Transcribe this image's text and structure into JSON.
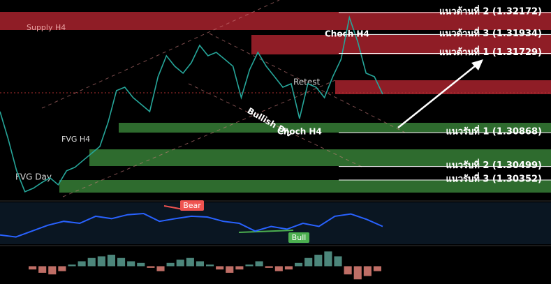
{
  "chart_data": [
    {
      "type": "line",
      "color": "#26a69a",
      "values": [
        1.31096,
        1.30793,
        1.30452,
        1.30224,
        1.30262,
        1.30323,
        1.30376,
        1.303,
        1.30452,
        1.3049,
        1.30566,
        1.30641,
        1.30717,
        1.30982,
        1.31324,
        1.31361,
        1.31248,
        1.31172,
        1.31096,
        1.31475,
        1.31703,
        1.31589,
        1.31513,
        1.31627,
        1.31816,
        1.31703,
        1.3174,
        1.31665,
        1.31589,
        1.31248,
        1.31551,
        1.3174,
        1.31589,
        1.31475,
        1.31361,
        1.31399,
        1.3102,
        1.31399,
        1.31361,
        1.31248,
        1.31475,
        1.31665,
        1.32119,
        1.31854,
        1.31513,
        1.31475,
        1.31286
      ],
      "ylim": [
        1.30147,
        1.32309
      ],
      "levels": [
        {
          "label": "แนวต้านที่ 2 (1.32172)",
          "value": 1.32172
        },
        {
          "label": "แนวต้านที่ 3 (1.31934)",
          "value": 1.31934
        },
        {
          "label": "แนวต้านที่ 1 (1.31729)",
          "value": 1.31729
        },
        {
          "label": "แนวรับที่ 1 (1.30868)",
          "value": 1.30868
        },
        {
          "label": "แนวรับที่ 2 (1.30499)",
          "value": 1.30499
        },
        {
          "label": "แนวรับที่ 3 (1.30352)",
          "value": 1.30352
        }
      ],
      "annotations": [
        "Supply H4",
        "Choch H4",
        "Retest",
        "Bullish Div",
        "Choch H4",
        "FVG H4",
        "FVG Day"
      ]
    },
    {
      "type": "line",
      "color": "#2962ff",
      "values": [
        20,
        15,
        30,
        45,
        55,
        50,
        68,
        62,
        72,
        75,
        55,
        62,
        68,
        66,
        55,
        50,
        30,
        42,
        35,
        50,
        42,
        68,
        74,
        60,
        42
      ],
      "ylim": [
        0,
        100
      ],
      "annotations": [
        "Bear",
        "Bull"
      ]
    },
    {
      "type": "bar",
      "values": [
        -0.2,
        -0.4,
        -0.5,
        -0.3,
        0.1,
        0.3,
        0.5,
        0.6,
        0.7,
        0.5,
        0.3,
        0.2,
        -0.1,
        -0.3,
        0.2,
        0.4,
        0.5,
        0.3,
        0.1,
        -0.2,
        -0.4,
        -0.2,
        0.1,
        0.3,
        -0.1,
        -0.3,
        -0.2,
        0.2,
        0.5,
        0.7,
        0.9,
        0.6,
        -0.5,
        -0.8,
        -0.6,
        -0.3
      ],
      "ylim": [
        -1,
        1
      ]
    }
  ]
}
